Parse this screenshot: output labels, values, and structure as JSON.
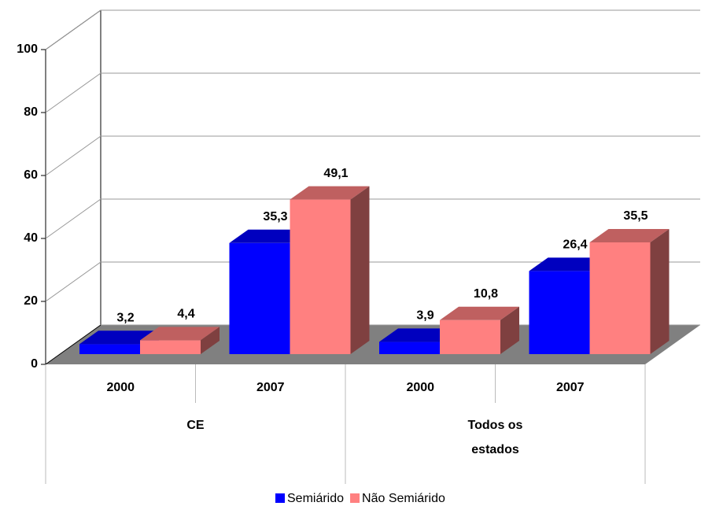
{
  "chart_data": {
    "type": "bar3d",
    "categories": [
      "2000",
      "2007",
      "2000",
      "2007"
    ],
    "groups": [
      "CE",
      "Todos os estados"
    ],
    "series": [
      {
        "name": "Semiárido",
        "color": "#0000ff",
        "values": [
          3.2,
          35.3,
          3.9,
          26.4
        ],
        "value_labels": [
          "3,2",
          "35,3",
          "3,9",
          "26,4"
        ]
      },
      {
        "name": "Não Semiárido",
        "color": "#ff8080",
        "values": [
          4.4,
          49.1,
          10.8,
          35.5
        ],
        "value_labels": [
          "4,4",
          "49,1",
          "10,8",
          "35,5"
        ]
      }
    ],
    "ylim": [
      0,
      100
    ],
    "yticks": [
      0,
      20,
      40,
      60,
      80,
      100
    ],
    "grid": true,
    "legend": "bottom"
  }
}
